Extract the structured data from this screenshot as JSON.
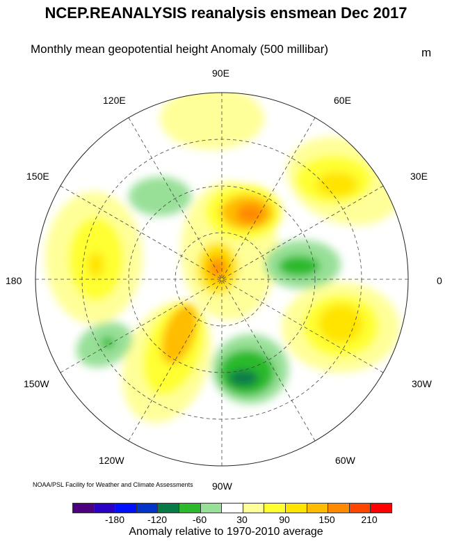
{
  "title": "NCEP.REANALYSIS reanalysis ensmean Dec 2017",
  "subtitle": "Monthly mean geopotential height Anomaly (500 millibar)",
  "units": "m",
  "longitude_labels": {
    "e90": "90E",
    "e120": "120E",
    "e60": "60E",
    "e150": "150E",
    "e30": "30E",
    "d180": "180",
    "d0": "0",
    "w150": "150W",
    "w30": "30W",
    "w120": "120W",
    "w60": "60W",
    "w90": "90W"
  },
  "credit": "NOAA/PSL Facility for Weather and Climate Assessments",
  "colorbar": {
    "colors": [
      "#4c0080",
      "#2a00c4",
      "#0010ff",
      "#0035c8",
      "#087a48",
      "#2cba2c",
      "#98e098",
      "#ffffff",
      "#ffff99",
      "#ffff30",
      "#ffe400",
      "#ffbc00",
      "#ff8a00",
      "#ff4600",
      "#ff0000"
    ],
    "tick_labels": [
      "-180",
      "-120",
      "-60",
      "30",
      "90",
      "150",
      "210"
    ],
    "label": "Anomaly relative to 1970-2010 average"
  }
}
